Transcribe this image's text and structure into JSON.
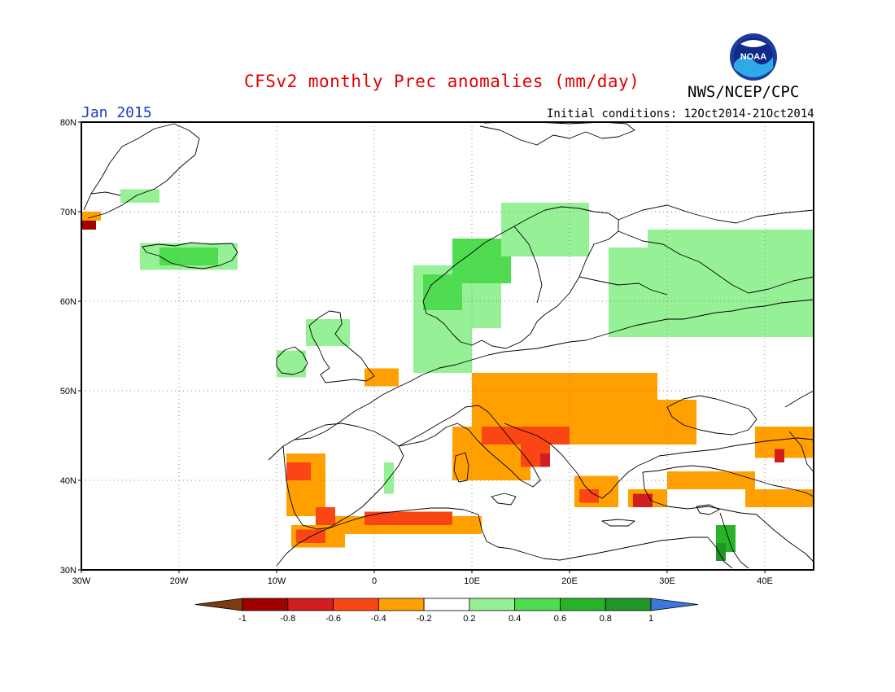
{
  "header": {
    "title": "CFSv2 monthly Prec anomalies (mm/day)",
    "agency": "NWS/NCEP/CPC",
    "month": "Jan 2015",
    "initial_conditions": "Initial conditions: 12Oct2014-21Oct2014",
    "logo_text": "NOAA"
  },
  "map": {
    "lon_range": [
      -30,
      45
    ],
    "lat_range": [
      30,
      80
    ],
    "lat_ticks": [
      {
        "value": 80,
        "label": "80N"
      },
      {
        "value": 70,
        "label": "70N"
      },
      {
        "value": 60,
        "label": "60N"
      },
      {
        "value": 50,
        "label": "50N"
      },
      {
        "value": 40,
        "label": "40N"
      },
      {
        "value": 30,
        "label": "30N"
      }
    ],
    "lon_ticks": [
      {
        "value": -30,
        "label": "30W"
      },
      {
        "value": -20,
        "label": "20W"
      },
      {
        "value": -10,
        "label": "10W"
      },
      {
        "value": 0,
        "label": "0"
      },
      {
        "value": 10,
        "label": "10E"
      },
      {
        "value": 20,
        "label": "20E"
      },
      {
        "value": 30,
        "label": "30E"
      },
      {
        "value": 40,
        "label": "40E"
      }
    ],
    "grid": true,
    "anomaly_regions": [
      {
        "level": 0.3,
        "lon": [
          4,
          10
        ],
        "lat": [
          52,
          57
        ]
      },
      {
        "level": 0.3,
        "lon": [
          4,
          13
        ],
        "lat": [
          57,
          64
        ]
      },
      {
        "level": 0.5,
        "lon": [
          5,
          9
        ],
        "lat": [
          59,
          63
        ]
      },
      {
        "level": 0.5,
        "lon": [
          8,
          14
        ],
        "lat": [
          62,
          67
        ]
      },
      {
        "level": 0.3,
        "lon": [
          13,
          22
        ],
        "lat": [
          65,
          71
        ]
      },
      {
        "level": 0.3,
        "lon": [
          24,
          45
        ],
        "lat": [
          56,
          66
        ]
      },
      {
        "level": 0.3,
        "lon": [
          28,
          45
        ],
        "lat": [
          65,
          68
        ]
      },
      {
        "level": 0.3,
        "lon": [
          -24,
          -14
        ],
        "lat": [
          63.5,
          66.5
        ]
      },
      {
        "level": 0.5,
        "lon": [
          -22,
          -16
        ],
        "lat": [
          64,
          66
        ]
      },
      {
        "level": 0.3,
        "lon": [
          -26,
          -22
        ],
        "lat": [
          71,
          72.5
        ]
      },
      {
        "level": 0.3,
        "lon": [
          -10,
          -7
        ],
        "lat": [
          51.5,
          54.5
        ]
      },
      {
        "level": 0.3,
        "lon": [
          -7,
          -2.5
        ],
        "lat": [
          55,
          58
        ]
      },
      {
        "level": 0.3,
        "lon": [
          1,
          2
        ],
        "lat": [
          38.5,
          42
        ]
      },
      {
        "level": 0.7,
        "lon": [
          35,
          37
        ],
        "lat": [
          32,
          35
        ]
      },
      {
        "level": 0.9,
        "lon": [
          35,
          36
        ],
        "lat": [
          31,
          33
        ]
      },
      {
        "level": -0.3,
        "lon": [
          -30,
          -28
        ],
        "lat": [
          69,
          70
        ]
      },
      {
        "level": -0.9,
        "lon": [
          -30,
          -28.5
        ],
        "lat": [
          68,
          69
        ]
      },
      {
        "level": -0.3,
        "lon": [
          -1,
          2.5
        ],
        "lat": [
          50.5,
          52.5
        ]
      },
      {
        "level": -0.3,
        "lon": [
          10,
          29
        ],
        "lat": [
          46,
          52
        ]
      },
      {
        "level": -0.3,
        "lon": [
          20,
          33
        ],
        "lat": [
          44,
          49
        ]
      },
      {
        "level": -0.3,
        "lon": [
          8,
          16
        ],
        "lat": [
          40,
          46
        ]
      },
      {
        "level": -0.5,
        "lon": [
          11,
          20
        ],
        "lat": [
          44,
          46
        ]
      },
      {
        "level": -0.5,
        "lon": [
          15,
          18
        ],
        "lat": [
          41.5,
          44
        ]
      },
      {
        "level": -0.7,
        "lon": [
          17,
          18
        ],
        "lat": [
          41.5,
          43
        ]
      },
      {
        "level": -0.3,
        "lon": [
          20.5,
          25
        ],
        "lat": [
          37,
          40.5
        ]
      },
      {
        "level": -0.5,
        "lon": [
          21,
          23
        ],
        "lat": [
          37.5,
          39
        ]
      },
      {
        "level": -0.3,
        "lon": [
          26,
          30
        ],
        "lat": [
          37,
          39
        ]
      },
      {
        "level": -0.7,
        "lon": [
          26.5,
          28.5
        ],
        "lat": [
          37,
          38.5
        ]
      },
      {
        "level": -0.3,
        "lon": [
          30,
          39
        ],
        "lat": [
          39,
          41
        ]
      },
      {
        "level": -0.3,
        "lon": [
          39,
          45
        ],
        "lat": [
          42.5,
          46
        ]
      },
      {
        "level": -0.7,
        "lon": [
          41,
          42
        ],
        "lat": [
          42,
          43.5
        ]
      },
      {
        "level": -0.3,
        "lon": [
          38,
          45
        ],
        "lat": [
          37,
          39
        ]
      },
      {
        "level": -0.3,
        "lon": [
          -9,
          -5
        ],
        "lat": [
          36,
          43
        ]
      },
      {
        "level": -0.5,
        "lon": [
          -9,
          -6.5
        ],
        "lat": [
          40,
          42
        ]
      },
      {
        "level": -0.5,
        "lon": [
          -6,
          -4
        ],
        "lat": [
          34,
          37
        ]
      },
      {
        "level": -0.3,
        "lon": [
          -8.5,
          -3
        ],
        "lat": [
          32.5,
          35
        ]
      },
      {
        "level": -0.5,
        "lon": [
          -8,
          -5
        ],
        "lat": [
          33,
          34.5
        ]
      },
      {
        "level": -0.3,
        "lon": [
          -4,
          11
        ],
        "lat": [
          34,
          36
        ]
      },
      {
        "level": -0.5,
        "lon": [
          -1,
          8
        ],
        "lat": [
          35,
          36.5
        ]
      }
    ]
  },
  "colorbar": {
    "colors": [
      "#7b3c14",
      "#a00000",
      "#d21e1e",
      "#fa4614",
      "#ffa000",
      "#ffffff",
      "#96f096",
      "#50dc50",
      "#28b428",
      "#1e9628",
      "#3c78dc"
    ],
    "labels": [
      "-1",
      "-0.8",
      "-0.6",
      "-0.4",
      "-0.2",
      "0.2",
      "0.4",
      "0.6",
      "0.8",
      "1"
    ]
  }
}
